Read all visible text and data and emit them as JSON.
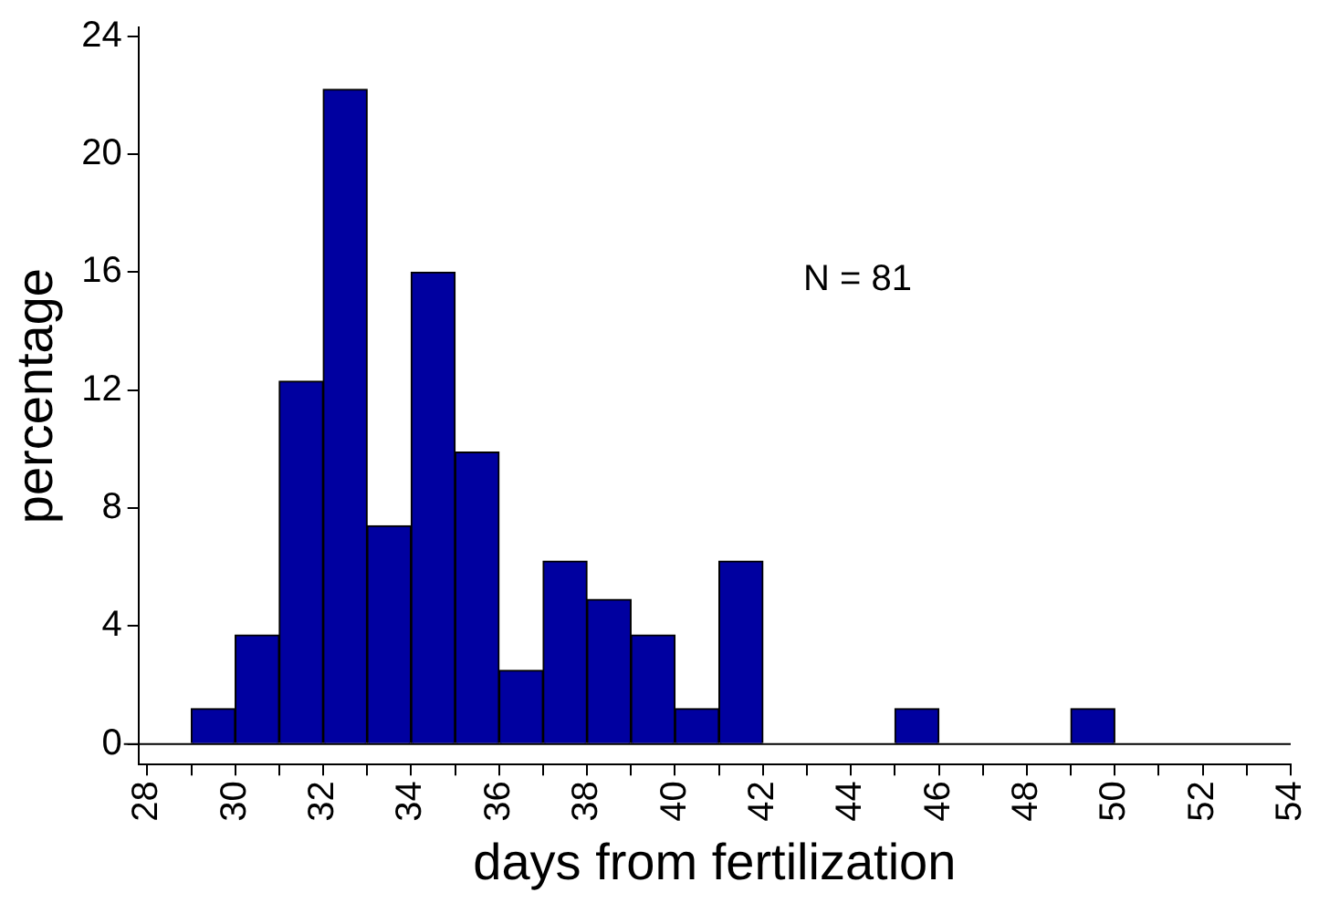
{
  "chart_data": {
    "type": "histogram",
    "xlabel": "days from fertilization",
    "ylabel": "percentage",
    "bins": [
      29,
      30,
      31,
      32,
      33,
      34,
      35,
      36,
      37,
      38,
      39,
      40,
      41,
      42,
      43,
      44,
      45,
      46,
      47,
      48,
      49,
      50
    ],
    "values": [
      1.2,
      3.7,
      12.3,
      22.2,
      7.4,
      16,
      9.9,
      2.5,
      6.2,
      4.9,
      3.7,
      1.2,
      6.2,
      0,
      0,
      0,
      1.2,
      0,
      0,
      0,
      1.2
    ],
    "color": "#0000a0",
    "xlim": [
      27.8,
      54
    ],
    "ylim": [
      -0.7,
      24.3
    ],
    "xticks": [
      28,
      {
        "value": 29,
        "label": null
      },
      30,
      {
        "value": 31,
        "label": null
      },
      32,
      {
        "value": 33,
        "label": null
      },
      34,
      {
        "value": 35,
        "label": null
      },
      36,
      {
        "value": 37,
        "label": null
      },
      38,
      {
        "value": 39,
        "label": null
      },
      40,
      {
        "value": 41,
        "label": null
      },
      42,
      {
        "value": 43,
        "label": null
      },
      44,
      {
        "value": 45,
        "label": null
      },
      46,
      {
        "value": 47,
        "label": null
      },
      48,
      {
        "value": 49,
        "label": null
      },
      50,
      {
        "value": 51,
        "label": null
      },
      52,
      {
        "value": 53,
        "label": null
      },
      54
    ],
    "yticks": [
      0,
      4,
      8,
      12,
      16,
      20,
      24
    ],
    "ref_lines": [
      {
        "axis": "y",
        "value": 0
      }
    ],
    "annotations": [
      "N = 81"
    ],
    "grid": false,
    "legend": false
  }
}
